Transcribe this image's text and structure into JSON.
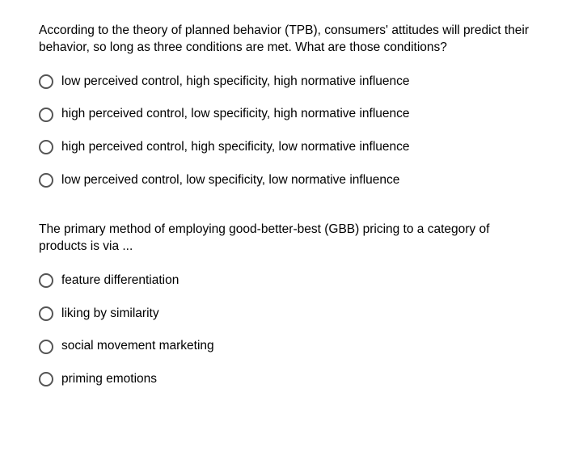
{
  "questions": [
    {
      "prompt": "According to the theory of planned behavior (TPB), consumers' attitudes will predict their behavior, so long as three conditions are met. What are those conditions?",
      "options": [
        "low perceived control, high specificity, high normative influence",
        "high perceived control, low specificity, high normative influence",
        "high perceived control, high specificity, low normative influence",
        "low perceived control, low specificity, low normative influence"
      ]
    },
    {
      "prompt": "The primary method of employing good-better-best (GBB) pricing to a category of products is via ...",
      "options": [
        "feature differentiation",
        "liking by similarity",
        "social movement marketing",
        "priming emotions"
      ]
    }
  ],
  "colors": {
    "background": "#ffffff",
    "text": "#000000",
    "radio_border": "#555555"
  },
  "typography": {
    "font_family": "Helvetica Neue, Arial, sans-serif",
    "question_fontsize": 15.5,
    "option_fontsize": 15.5
  }
}
